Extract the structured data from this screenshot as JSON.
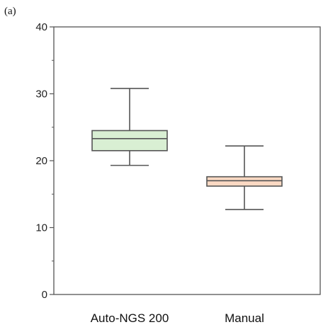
{
  "panel_label": "(a)",
  "chart_data": {
    "type": "box",
    "title": "",
    "xlabel": "",
    "ylabel": "",
    "ylim": [
      0,
      40
    ],
    "yticks_major": [
      0,
      10,
      20,
      30,
      40
    ],
    "yticks_minor": [
      5,
      15,
      25,
      35
    ],
    "grid": false,
    "legend": "none",
    "categories": [
      "Auto-NGS 200",
      "Manual"
    ],
    "series": [
      {
        "category": "Auto-NGS 200",
        "whisker_low": 19.3,
        "q1": 21.5,
        "median": 23.3,
        "q3": 24.5,
        "whisker_high": 30.8,
        "fill": "#d9efd3",
        "stroke": "#555555"
      },
      {
        "category": "Manual",
        "whisker_low": 12.7,
        "q1": 16.2,
        "median": 17.0,
        "q3": 17.6,
        "whisker_high": 22.2,
        "fill": "#fbd9c3",
        "stroke": "#555555"
      }
    ]
  }
}
